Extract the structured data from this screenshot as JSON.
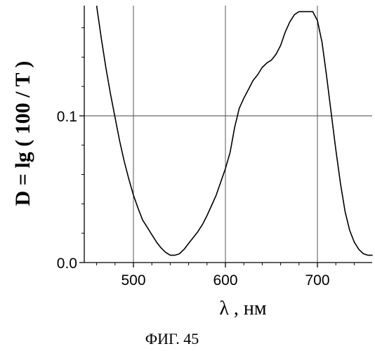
{
  "chart_data": {
    "type": "line",
    "xlabel": "λ , нм",
    "ylabel": "D = lg ( 100 / T )",
    "caption": "ФИГ. 45",
    "xlim": [
      450,
      760
    ],
    "ylim": [
      0.0,
      0.175
    ],
    "x_ticks": [
      500,
      600,
      700
    ],
    "y_ticks": [
      0.0,
      0.1
    ],
    "x_tick_labels": [
      "500",
      "600",
      "700"
    ],
    "y_tick_labels": [
      "0.0",
      "0.1"
    ],
    "grid": true,
    "series": [
      {
        "points": [
          [
            460,
            0.175
          ],
          [
            465,
            0.153
          ],
          [
            470,
            0.133
          ],
          [
            475,
            0.115
          ],
          [
            480,
            0.099
          ],
          [
            485,
            0.083
          ],
          [
            490,
            0.069
          ],
          [
            495,
            0.057
          ],
          [
            500,
            0.046
          ],
          [
            505,
            0.037
          ],
          [
            510,
            0.029
          ],
          [
            515,
            0.024
          ],
          [
            520,
            0.019
          ],
          [
            525,
            0.014
          ],
          [
            530,
            0.01
          ],
          [
            535,
            0.007
          ],
          [
            540,
            0.005
          ],
          [
            545,
            0.005
          ],
          [
            550,
            0.006
          ],
          [
            555,
            0.009
          ],
          [
            560,
            0.013
          ],
          [
            565,
            0.017
          ],
          [
            570,
            0.021
          ],
          [
            575,
            0.026
          ],
          [
            580,
            0.032
          ],
          [
            585,
            0.039
          ],
          [
            590,
            0.046
          ],
          [
            595,
            0.055
          ],
          [
            600,
            0.064
          ],
          [
            605,
            0.075
          ],
          [
            610,
            0.092
          ],
          [
            615,
            0.105
          ],
          [
            620,
            0.112
          ],
          [
            625,
            0.118
          ],
          [
            630,
            0.124
          ],
          [
            635,
            0.128
          ],
          [
            640,
            0.133
          ],
          [
            645,
            0.136
          ],
          [
            650,
            0.138
          ],
          [
            655,
            0.142
          ],
          [
            660,
            0.148
          ],
          [
            665,
            0.157
          ],
          [
            670,
            0.164
          ],
          [
            675,
            0.169
          ],
          [
            680,
            0.171
          ],
          [
            685,
            0.171
          ],
          [
            690,
            0.171
          ],
          [
            695,
            0.171
          ],
          [
            700,
            0.165
          ],
          [
            705,
            0.15
          ],
          [
            710,
            0.127
          ],
          [
            715,
            0.102
          ],
          [
            720,
            0.077
          ],
          [
            725,
            0.054
          ],
          [
            730,
            0.035
          ],
          [
            735,
            0.022
          ],
          [
            740,
            0.014
          ],
          [
            745,
            0.009
          ],
          [
            750,
            0.006
          ],
          [
            755,
            0.005
          ],
          [
            760,
            0.005
          ]
        ]
      }
    ]
  }
}
